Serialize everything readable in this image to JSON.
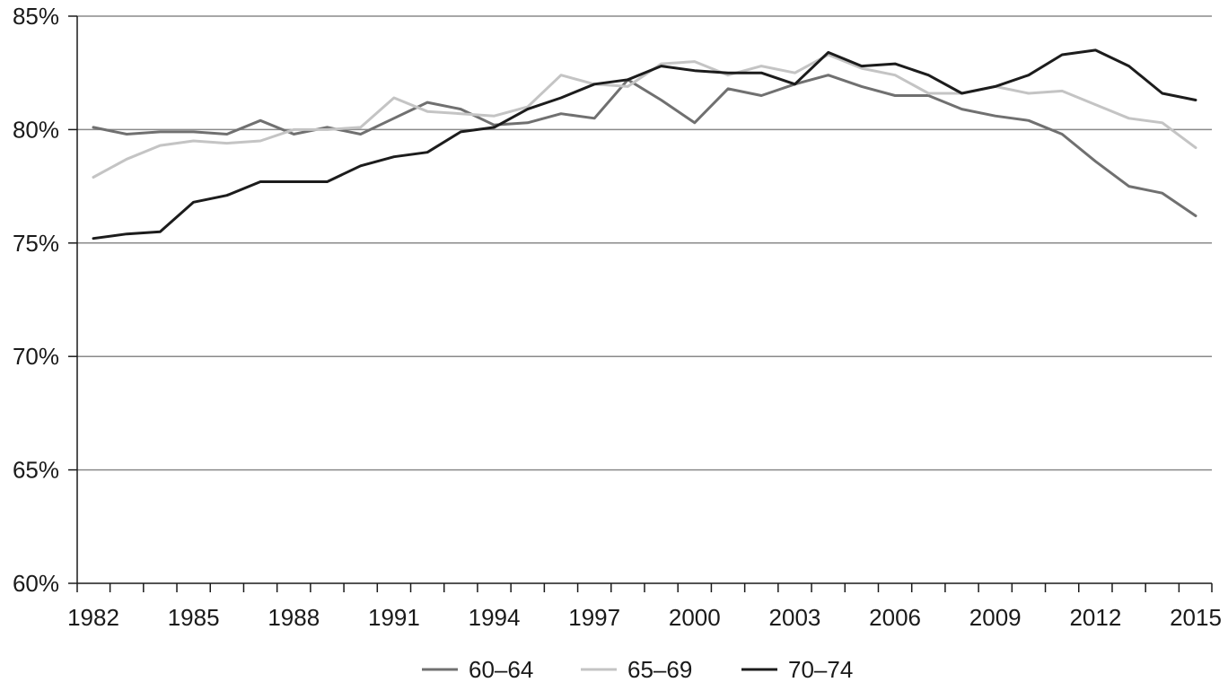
{
  "chart_data": {
    "type": "line",
    "title": "",
    "xlabel": "",
    "ylabel": "",
    "x": [
      1982,
      1983,
      1984,
      1985,
      1986,
      1987,
      1988,
      1989,
      1990,
      1991,
      1992,
      1993,
      1994,
      1995,
      1996,
      1997,
      1998,
      1999,
      2000,
      2001,
      2002,
      2003,
      2004,
      2005,
      2006,
      2007,
      2008,
      2009,
      2010,
      2011,
      2012,
      2013,
      2014,
      2015
    ],
    "x_ticks": [
      1982,
      1985,
      1988,
      1991,
      1994,
      1997,
      2000,
      2003,
      2006,
      2009,
      2012,
      2015
    ],
    "x_tick_labels": [
      "1982",
      "1985",
      "1988",
      "1991",
      "1994",
      "1997",
      "2000",
      "2003",
      "2006",
      "2009",
      "2012",
      "2015"
    ],
    "ylim": [
      60,
      85
    ],
    "y_ticks": [
      60,
      65,
      70,
      75,
      80,
      85
    ],
    "y_tick_labels": [
      "60%",
      "65%",
      "70%",
      "75%",
      "80%",
      "85%"
    ],
    "grid": "horizontal",
    "legend_position": "bottom-center",
    "series": [
      {
        "name": "60–64",
        "color": "#707070",
        "values": [
          80.1,
          79.8,
          79.9,
          79.9,
          79.8,
          80.4,
          79.8,
          80.1,
          79.8,
          80.5,
          81.2,
          80.9,
          80.2,
          80.3,
          80.7,
          80.5,
          82.2,
          81.3,
          80.3,
          81.8,
          81.5,
          82.0,
          82.4,
          81.9,
          81.5,
          81.5,
          80.9,
          80.6,
          80.4,
          79.8,
          78.6,
          77.5,
          77.2,
          76.2
        ]
      },
      {
        "name": "65–69",
        "color": "#c4c4c4",
        "values": [
          77.9,
          78.7,
          79.3,
          79.5,
          79.4,
          79.5,
          80.0,
          80.0,
          80.1,
          81.4,
          80.8,
          80.7,
          80.6,
          81.0,
          82.4,
          82.0,
          81.9,
          82.9,
          83.0,
          82.4,
          82.8,
          82.5,
          83.3,
          82.7,
          82.4,
          81.6,
          81.6,
          81.9,
          81.6,
          81.7,
          81.1,
          80.5,
          80.3,
          79.2
        ]
      },
      {
        "name": "70–74",
        "color": "#1c1c1c",
        "values": [
          75.2,
          75.4,
          75.5,
          76.8,
          77.1,
          77.7,
          77.7,
          77.7,
          78.4,
          78.8,
          79.0,
          79.9,
          80.1,
          80.9,
          81.4,
          82.0,
          82.2,
          82.8,
          82.6,
          82.5,
          82.5,
          82.0,
          83.4,
          82.8,
          82.9,
          82.4,
          81.6,
          81.9,
          82.4,
          83.3,
          83.5,
          82.8,
          81.6,
          81.3
        ]
      }
    ]
  }
}
